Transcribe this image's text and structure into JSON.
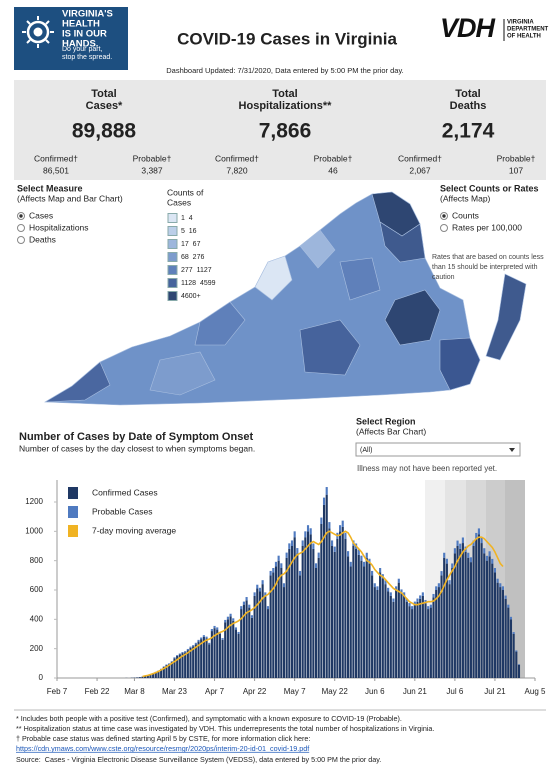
{
  "header": {
    "logo_lines": [
      "VIRGINIA'S",
      "HEALTH",
      "IS IN OUR",
      "HANDS.",
      "Do your part,",
      "stop the spread."
    ],
    "title": "COVID-19 Cases in Virginia",
    "vdh": "VDH",
    "vdh_lines": [
      "VIRGINIA",
      "DEPARTMENT",
      "OF HEALTH"
    ],
    "updated": "Dashboard Updated: 7/31/2020, Data entered by 5:00 PM the prior day."
  },
  "summary": [
    {
      "title": [
        "Total",
        "Cases*"
      ],
      "value": "89,888",
      "breakdown": [
        {
          "label": "Confirmed†",
          "value": "86,501"
        },
        {
          "label": "Probable†",
          "value": "3,387"
        }
      ]
    },
    {
      "title": [
        "Total",
        "Hospitalizations**"
      ],
      "value": "7,866",
      "breakdown": [
        {
          "label": "Confirmed†",
          "value": "7,820"
        },
        {
          "label": "Probable†",
          "value": "46"
        }
      ]
    },
    {
      "title": [
        "Total",
        "Deaths"
      ],
      "value": "2,174",
      "breakdown": [
        {
          "label": "Confirmed†",
          "value": "2,067"
        },
        {
          "label": "Probable†",
          "value": "107"
        }
      ]
    }
  ],
  "select_measure": {
    "title": "Select Measure",
    "subtitle": "(Affects Map and Bar Chart)",
    "options": [
      "Cases",
      "Hospitalizations",
      "Deaths"
    ],
    "selected": 0
  },
  "map_legend": {
    "title": [
      "Counts of",
      "Cases"
    ],
    "bins": [
      "1  4",
      "5  16",
      "17  67",
      "68  276",
      "277  1127",
      "1128  4599",
      "4600+"
    ],
    "colors": [
      "#dbe6f4",
      "#bccfe9",
      "#9db6dc",
      "#7d9ccd",
      "#5f80ba",
      "#46639c",
      "#2e4672"
    ]
  },
  "select_counts": {
    "title": "Select Counts or Rates",
    "subtitle": "(Affects Map)",
    "options": [
      "Counts",
      "Rates per 100,000"
    ],
    "selected": 0,
    "note": [
      "Rates that are based on counts less",
      "than 15 should be interpreted with",
      "caution"
    ]
  },
  "select_region": {
    "title": "Select Region",
    "subtitle": "(Affects Bar Chart)",
    "value": "(All)",
    "note": "Illness may not have been reported yet."
  },
  "chart_data": {
    "type": "bar",
    "stacked": true,
    "title": "Number of Cases by Date of Symptom Onset",
    "subtitle": "Number of cases by the day closest to when symptoms began.",
    "x": [
      "Mar 5",
      "Mar 6",
      "Mar 7",
      "Mar 8",
      "Mar 9",
      "Mar 10",
      "Mar 11",
      "Mar 12",
      "Mar 13",
      "Mar 14",
      "Mar 15",
      "Mar 16",
      "Mar 17",
      "Mar 18",
      "Mar 19",
      "Mar 20",
      "Mar 21",
      "Mar 22",
      "Mar 23",
      "Mar 24",
      "Mar 25",
      "Mar 26",
      "Mar 27",
      "Mar 28",
      "Mar 29",
      "Mar 30",
      "Mar 31",
      "Apr 1",
      "Apr 2",
      "Apr 3",
      "Apr 4",
      "Apr 5",
      "Apr 6",
      "Apr 7",
      "Apr 8",
      "Apr 9",
      "Apr 10",
      "Apr 11",
      "Apr 12",
      "Apr 13",
      "Apr 14",
      "Apr 15",
      "Apr 16",
      "Apr 17",
      "Apr 18",
      "Apr 19",
      "Apr 20",
      "Apr 21",
      "Apr 22",
      "Apr 23",
      "Apr 24",
      "Apr 25",
      "Apr 26",
      "Apr 27",
      "Apr 28",
      "Apr 29",
      "Apr 30",
      "May 1",
      "May 2",
      "May 3",
      "May 4",
      "May 5",
      "May 6",
      "May 7",
      "May 8",
      "May 9",
      "May 10",
      "May 11",
      "May 12",
      "May 13",
      "May 14",
      "May 15",
      "May 16",
      "May 17",
      "May 18",
      "May 19",
      "May 20",
      "May 21",
      "May 22",
      "May 23",
      "May 24",
      "May 25",
      "May 26",
      "May 27",
      "May 28",
      "May 29",
      "May 30",
      "May 31",
      "Jun 1",
      "Jun 2",
      "Jun 3",
      "Jun 4",
      "Jun 5",
      "Jun 6",
      "Jun 7",
      "Jun 8",
      "Jun 9",
      "Jun 10",
      "Jun 11",
      "Jun 12",
      "Jun 13",
      "Jun 14",
      "Jun 15",
      "Jun 16",
      "Jun 17",
      "Jun 18",
      "Jun 19",
      "Jun 20",
      "Jun 21",
      "Jun 22",
      "Jun 23",
      "Jun 24",
      "Jun 25",
      "Jun 26",
      "Jun 27",
      "Jun 28",
      "Jun 29",
      "Jun 30",
      "Jul 1",
      "Jul 2",
      "Jul 3",
      "Jul 4",
      "Jul 5",
      "Jul 6",
      "Jul 7",
      "Jul 8",
      "Jul 9",
      "Jul 10",
      "Jul 11",
      "Jul 12",
      "Jul 13",
      "Jul 14",
      "Jul 15",
      "Jul 16",
      "Jul 17",
      "Jul 18",
      "Jul 19",
      "Jul 20",
      "Jul 21",
      "Jul 22",
      "Jul 23",
      "Jul 24",
      "Jul 25",
      "Jul 26",
      "Jul 27",
      "Jul 28",
      "Jul 29",
      "Jul 30"
    ],
    "series": [
      {
        "name": "Confirmed Cases",
        "color": "#1f3864",
        "values": [
          1,
          0,
          2,
          3,
          4,
          6,
          9,
          14,
          18,
          25,
          32,
          40,
          48,
          60,
          75,
          88,
          95,
          110,
          135,
          150,
          160,
          170,
          175,
          190,
          205,
          215,
          230,
          250,
          265,
          280,
          270,
          230,
          320,
          340,
          330,
          300,
          260,
          380,
          400,
          420,
          390,
          330,
          300,
          470,
          500,
          530,
          480,
          410,
          560,
          610,
          590,
          640,
          560,
          470,
          700,
          720,
          760,
          800,
          750,
          620,
          820,
          880,
          900,
          960,
          850,
          700,
          900,
          960,
          1000,
          980,
          880,
          750,
          820,
          1050,
          1180,
          1250,
          1020,
          900,
          860,
          950,
          1000,
          1030,
          950,
          830,
          760,
          900,
          880,
          840,
          800,
          760,
          820,
          780,
          700,
          620,
          600,
          720,
          680,
          640,
          590,
          560,
          520,
          600,
          650,
          580,
          560,
          520,
          490,
          470,
          500,
          520,
          540,
          560,
          510,
          470,
          480,
          550,
          600,
          620,
          700,
          820,
          780,
          640,
          750,
          850,
          900,
          880,
          920,
          860,
          820,
          790,
          900,
          950,
          980,
          920,
          850,
          800,
          830,
          780,
          720,
          650,
          620,
          600,
          540,
          480,
          400,
          300,
          180,
          90
        ]
      },
      {
        "name": "Probable Cases",
        "color": "#4f7ac0",
        "values": [
          0,
          0,
          0,
          0,
          0,
          0,
          0,
          1,
          1,
          1,
          2,
          2,
          3,
          3,
          4,
          4,
          5,
          5,
          6,
          6,
          7,
          7,
          8,
          8,
          9,
          9,
          10,
          10,
          11,
          12,
          12,
          10,
          14,
          15,
          15,
          14,
          12,
          16,
          18,
          18,
          17,
          15,
          14,
          20,
          21,
          22,
          20,
          18,
          24,
          26,
          25,
          27,
          24,
          20,
          30,
          30,
          32,
          34,
          32,
          26,
          35,
          38,
          38,
          40,
          36,
          30,
          38,
          40,
          42,
          41,
          37,
          32,
          35,
          44,
          50,
          52,
          43,
          38,
          36,
          40,
          42,
          43,
          40,
          35,
          32,
          38,
          37,
          35,
          34,
          32,
          34,
          33,
          30,
          26,
          25,
          30,
          28,
          27,
          25,
          24,
          22,
          25,
          27,
          24,
          24,
          22,
          21,
          20,
          21,
          22,
          23,
          24,
          22,
          20,
          20,
          23,
          25,
          26,
          29,
          34,
          33,
          27,
          31,
          35,
          37,
          36,
          38,
          36,
          34,
          33,
          37,
          39,
          40,
          38,
          35,
          33,
          34,
          32,
          30,
          27,
          26,
          25,
          22,
          20,
          17,
          13,
          8,
          4
        ]
      },
      {
        "name": "7-day moving average",
        "color": "#f0b323",
        "type": "line",
        "values": [
          null,
          null,
          null,
          null,
          null,
          null,
          10,
          14,
          18,
          24,
          30,
          37,
          45,
          55,
          65,
          75,
          88,
          100,
          112,
          125,
          138,
          150,
          160,
          172,
          185,
          198,
          210,
          222,
          235,
          248,
          258,
          265,
          275,
          290,
          300,
          310,
          318,
          328,
          345,
          360,
          372,
          380,
          390,
          405,
          425,
          445,
          455,
          465,
          480,
          500,
          520,
          545,
          560,
          570,
          590,
          610,
          640,
          680,
          700,
          710,
          730,
          760,
          790,
          820,
          840,
          850,
          860,
          880,
          900,
          920,
          930,
          920,
          910,
          930,
          960,
          990,
          1000,
          990,
          980,
          970,
          975,
          990,
          1000,
          990,
          960,
          920,
          900,
          880,
          860,
          830,
          800,
          790,
          770,
          740,
          720,
          700,
          690,
          670,
          650,
          630,
          610,
          600,
          590,
          580,
          560,
          540,
          520,
          510,
          500,
          500,
          505,
          510,
          515,
          520,
          520,
          525,
          540,
          560,
          590,
          630,
          670,
          700,
          730,
          760,
          800,
          830,
          860,
          880,
          900,
          910,
          930,
          950,
          960,
          960,
          950,
          930,
          910,
          890,
          860,
          820,
          780,
          760,
          null,
          null,
          null,
          null,
          null,
          null
        ]
      }
    ],
    "xlim": [
      "Feb 7",
      "Aug 5"
    ],
    "xticks": [
      "Feb 7",
      "Feb 22",
      "Mar 8",
      "Mar 23",
      "Apr 7",
      "Apr 22",
      "May 7",
      "May 22",
      "Jun 6",
      "Jun 21",
      "Jul 6",
      "Jul 21",
      "Aug 5"
    ],
    "ylim": [
      0,
      1350
    ],
    "yticks": [
      0,
      200,
      400,
      600,
      800,
      1000,
      1200
    ],
    "grid": false
  },
  "footnotes": {
    "lines": [
      "* Includes both people with a positive test (Confirmed), and symptomatic with a known exposure to COVID-19 (Probable).",
      "** Hospitalization status at time case was investigated by VDH. This underrepresents the total number of hospitalizations in Virginia.",
      "† Probable case status was defined starting April 5 by CSTE, for more information click here:"
    ],
    "link": "https://cdn.ymaws.com/www.cste.org/resource/resmgr/2020ps/interim-20-id-01_covid-19.pdf",
    "source": "Source:  Cases - Virginia Electronic Disease Surveillance System (VEDSS), data entered by 5:00 PM the prior day."
  }
}
